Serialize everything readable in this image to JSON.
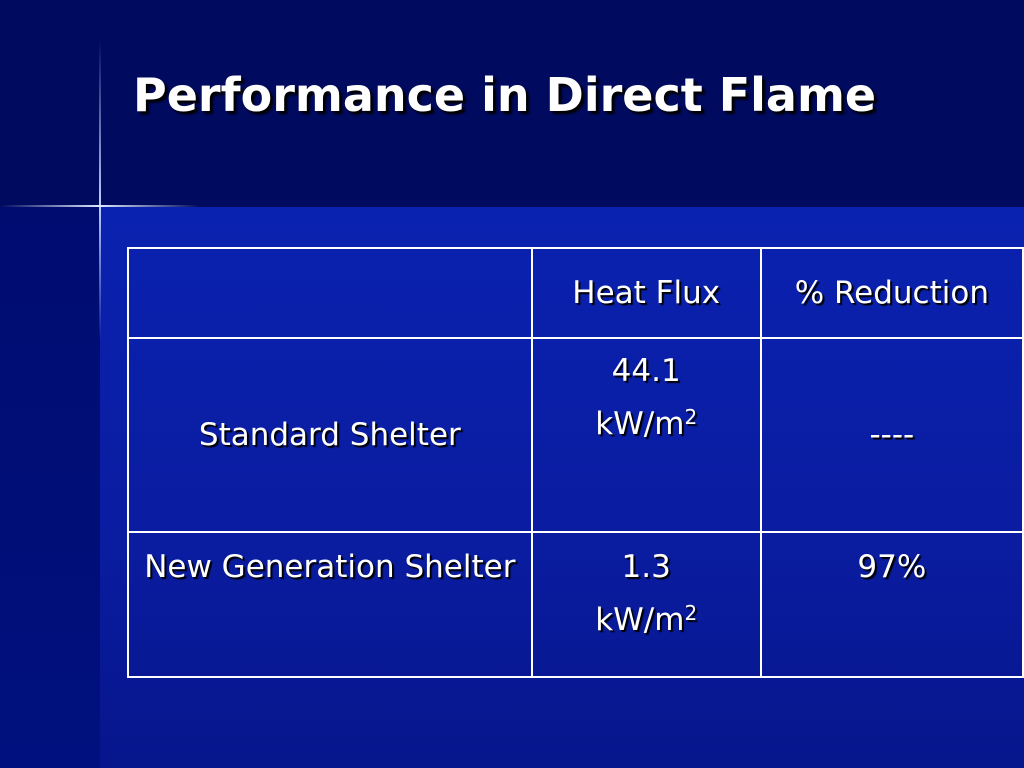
{
  "title": "Performance in Direct Flame",
  "table": {
    "header": [
      "",
      "Heat Flux",
      "% Reduction"
    ],
    "rows": [
      {
        "label": "Standard Shelter",
        "heat_flux": {
          "value": "44.1",
          "unit": "kW/m",
          "exponent": "2"
        },
        "reduction": "----"
      },
      {
        "label": "New Generation Shelter",
        "heat_flux": {
          "value": "1.3",
          "unit": "kW/m",
          "exponent": "2"
        },
        "reduction": "97%"
      }
    ]
  }
}
